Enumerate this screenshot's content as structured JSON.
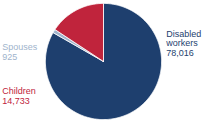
{
  "chart_data": {
    "type": "pie",
    "categories": [
      "Disabled\nworkers",
      "Spouses",
      "Children"
    ],
    "values": [
      78016,
      925,
      14733
    ],
    "value_labels": [
      "78,016",
      "925",
      "14,733"
    ],
    "colors": [
      "#1e3f6e",
      "#a0b4cc",
      "#c0243c"
    ],
    "data_labels": true
  }
}
